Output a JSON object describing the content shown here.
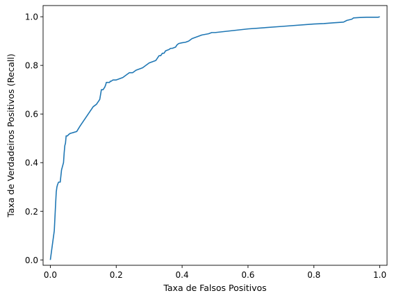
{
  "chart_data": {
    "type": "line",
    "title": "",
    "xlabel": "Taxa de Falsos Positivos",
    "ylabel": "Taxa de Verdadeiros Positivos (Recall)",
    "xlim": [
      -0.022,
      1.022
    ],
    "ylim": [
      -0.022,
      1.046
    ],
    "xticks": [
      0.0,
      0.2,
      0.4,
      0.6,
      0.8,
      1.0
    ],
    "yticks": [
      0.0,
      0.2,
      0.4,
      0.6,
      0.8,
      1.0
    ],
    "xtick_labels": [
      "0.0",
      "0.2",
      "0.4",
      "0.6",
      "0.8",
      "1.0"
    ],
    "ytick_labels": [
      "0.0",
      "0.2",
      "0.4",
      "0.6",
      "0.8",
      "1.0"
    ],
    "grid": false,
    "legend": "none",
    "series": [
      {
        "color": "#1f77b4",
        "x": [
          0.0,
          0.004,
          0.008,
          0.012,
          0.016,
          0.018,
          0.019,
          0.02,
          0.022,
          0.025,
          0.03,
          0.034,
          0.036,
          0.038,
          0.04,
          0.042,
          0.044,
          0.046,
          0.048,
          0.052,
          0.055,
          0.06,
          0.065,
          0.07,
          0.08,
          0.09,
          0.1,
          0.11,
          0.12,
          0.13,
          0.14,
          0.145,
          0.15,
          0.155,
          0.16,
          0.165,
          0.168,
          0.17,
          0.18,
          0.182,
          0.185,
          0.19,
          0.2,
          0.21,
          0.22,
          0.225,
          0.23,
          0.24,
          0.25,
          0.26,
          0.27,
          0.28,
          0.29,
          0.3,
          0.31,
          0.32,
          0.33,
          0.335,
          0.34,
          0.345,
          0.35,
          0.36,
          0.365,
          0.37,
          0.38,
          0.385,
          0.39,
          0.4,
          0.41,
          0.42,
          0.43,
          0.44,
          0.45,
          0.46,
          0.48,
          0.49,
          0.5,
          0.6,
          0.7,
          0.8,
          0.83,
          0.86,
          0.88,
          0.89,
          0.9,
          0.915,
          0.92,
          0.94,
          0.96,
          0.98,
          0.995,
          1.0
        ],
        "y": [
          0.0,
          0.04,
          0.08,
          0.12,
          0.23,
          0.28,
          0.29,
          0.3,
          0.31,
          0.32,
          0.32,
          0.37,
          0.38,
          0.39,
          0.4,
          0.44,
          0.47,
          0.48,
          0.51,
          0.51,
          0.515,
          0.52,
          0.522,
          0.524,
          0.528,
          0.55,
          0.57,
          0.59,
          0.61,
          0.63,
          0.64,
          0.65,
          0.66,
          0.7,
          0.7,
          0.71,
          0.72,
          0.73,
          0.73,
          0.735,
          0.735,
          0.74,
          0.74,
          0.745,
          0.75,
          0.755,
          0.76,
          0.77,
          0.77,
          0.78,
          0.785,
          0.79,
          0.8,
          0.81,
          0.815,
          0.82,
          0.84,
          0.84,
          0.85,
          0.85,
          0.86,
          0.865,
          0.87,
          0.87,
          0.875,
          0.885,
          0.89,
          0.893,
          0.895,
          0.9,
          0.91,
          0.915,
          0.92,
          0.925,
          0.93,
          0.935,
          0.935,
          0.95,
          0.96,
          0.97,
          0.972,
          0.975,
          0.977,
          0.978,
          0.985,
          0.99,
          0.995,
          0.997,
          0.998,
          0.998,
          0.998,
          1.0
        ]
      }
    ]
  }
}
